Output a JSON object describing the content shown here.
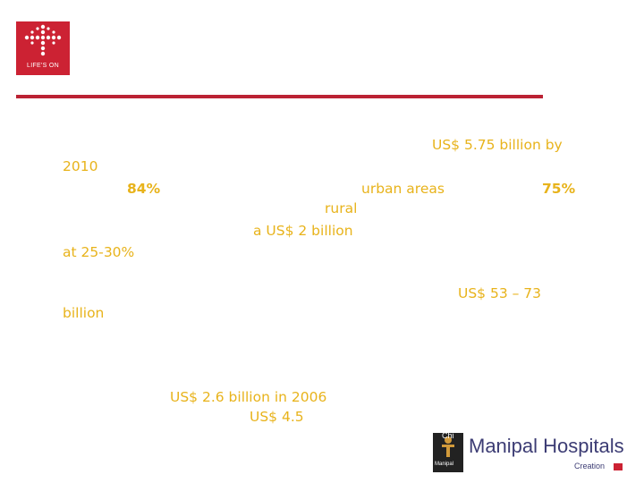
{
  "logo": {
    "text": "LIFE'S ON",
    "icon": "dot-cross-icon",
    "color": "#cc2233"
  },
  "accent_color": "#e8b31b",
  "rule_color": "#bb2233",
  "text": {
    "line1": "US$ 5.75 billion by",
    "line2": "2010",
    "line3a": "84%",
    "line3b": "urban areas",
    "line3c": "75%",
    "line4": "rural",
    "line5": "a US$ 2 billion",
    "line6": "at 25-30%",
    "line7": "US$ 53 – 73",
    "line8": "billion",
    "line9": "US$ 2.6 billion in 2006",
    "line10": "US$ 4.5"
  },
  "footer": {
    "brand": "Manipal Hospitals",
    "sub": "Creation",
    "caption": "Manipal",
    "chart_label": "Chi"
  }
}
